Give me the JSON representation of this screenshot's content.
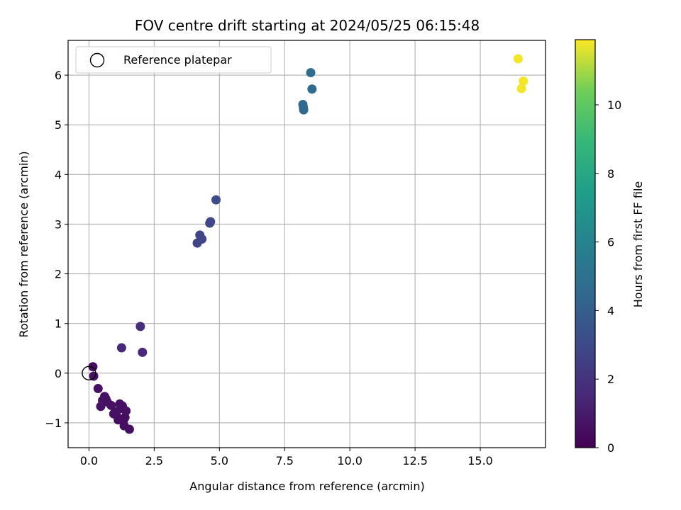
{
  "chart_data": {
    "type": "scatter",
    "title": "FOV centre drift starting at 2024/05/25 06:15:48",
    "xlabel": "Angular distance from reference (arcmin)",
    "ylabel": "Rotation from reference (arcmin)",
    "xlim": [
      -0.8,
      17.5
    ],
    "ylim": [
      -1.5,
      6.7
    ],
    "xticks": [
      0.0,
      2.5,
      5.0,
      7.5,
      10.0,
      12.5,
      15.0
    ],
    "xtick_labels": [
      "0.0",
      "2.5",
      "5.0",
      "7.5",
      "10.0",
      "12.5",
      "15.0"
    ],
    "yticks": [
      -1,
      0,
      1,
      2,
      3,
      4,
      5,
      6
    ],
    "ytick_labels": [
      "−1",
      "0",
      "1",
      "2",
      "3",
      "4",
      "5",
      "6"
    ],
    "grid": true,
    "legend": {
      "placement": "top-left",
      "entries": [
        "Reference platepar"
      ]
    },
    "reference_point": {
      "x": 0,
      "y": 0
    },
    "colorbar": {
      "label": "Hours from first FF file",
      "range": [
        0,
        11.9
      ],
      "ticks": [
        0,
        2,
        4,
        6,
        8,
        10
      ],
      "tick_labels": [
        "0",
        "2",
        "4",
        "6",
        "8",
        "10"
      ],
      "colormap": "viridis"
    },
    "points": [
      {
        "x": 0.15,
        "y": 0.13,
        "c": 0.5
      },
      {
        "x": 0.18,
        "y": -0.06,
        "c": 0.6
      },
      {
        "x": 0.35,
        "y": -0.31,
        "c": 0.6
      },
      {
        "x": 0.45,
        "y": -0.67,
        "c": 0.7
      },
      {
        "x": 0.52,
        "y": -0.55,
        "c": 0.7
      },
      {
        "x": 0.6,
        "y": -0.47,
        "c": 0.7
      },
      {
        "x": 0.65,
        "y": -0.52,
        "c": 0.7
      },
      {
        "x": 0.7,
        "y": -0.58,
        "c": 0.6
      },
      {
        "x": 0.85,
        "y": -0.65,
        "c": 0.6
      },
      {
        "x": 0.95,
        "y": -0.82,
        "c": 0.6
      },
      {
        "x": 1.0,
        "y": -0.78,
        "c": 0.6
      },
      {
        "x": 1.05,
        "y": -0.84,
        "c": 0.6
      },
      {
        "x": 1.12,
        "y": -0.94,
        "c": 0.5
      },
      {
        "x": 1.18,
        "y": -0.62,
        "c": 0.6
      },
      {
        "x": 1.22,
        "y": -0.71,
        "c": 0.6
      },
      {
        "x": 1.28,
        "y": -0.66,
        "c": 0.6
      },
      {
        "x": 1.32,
        "y": -0.95,
        "c": 0.5
      },
      {
        "x": 1.35,
        "y": -1.06,
        "c": 0.5
      },
      {
        "x": 1.38,
        "y": -0.89,
        "c": 0.5
      },
      {
        "x": 1.42,
        "y": -0.76,
        "c": 0.6
      },
      {
        "x": 1.55,
        "y": -1.13,
        "c": 0.5
      },
      {
        "x": 1.25,
        "y": 0.51,
        "c": 1.5
      },
      {
        "x": 1.97,
        "y": 0.94,
        "c": 1.7
      },
      {
        "x": 2.05,
        "y": 0.42,
        "c": 1.6
      },
      {
        "x": 4.15,
        "y": 2.62,
        "c": 2.7
      },
      {
        "x": 4.25,
        "y": 2.78,
        "c": 2.8
      },
      {
        "x": 4.33,
        "y": 2.7,
        "c": 2.8
      },
      {
        "x": 4.63,
        "y": 3.02,
        "c": 2.9
      },
      {
        "x": 4.66,
        "y": 3.05,
        "c": 2.9
      },
      {
        "x": 4.87,
        "y": 3.49,
        "c": 3.0
      },
      {
        "x": 8.2,
        "y": 5.41,
        "c": 4.6
      },
      {
        "x": 8.23,
        "y": 5.3,
        "c": 4.6
      },
      {
        "x": 8.22,
        "y": 5.35,
        "c": 4.6
      },
      {
        "x": 8.5,
        "y": 6.05,
        "c": 4.7
      },
      {
        "x": 8.55,
        "y": 5.72,
        "c": 4.7
      },
      {
        "x": 16.45,
        "y": 6.33,
        "c": 11.8
      },
      {
        "x": 16.58,
        "y": 5.73,
        "c": 11.8
      },
      {
        "x": 16.65,
        "y": 5.88,
        "c": 11.8
      }
    ]
  }
}
